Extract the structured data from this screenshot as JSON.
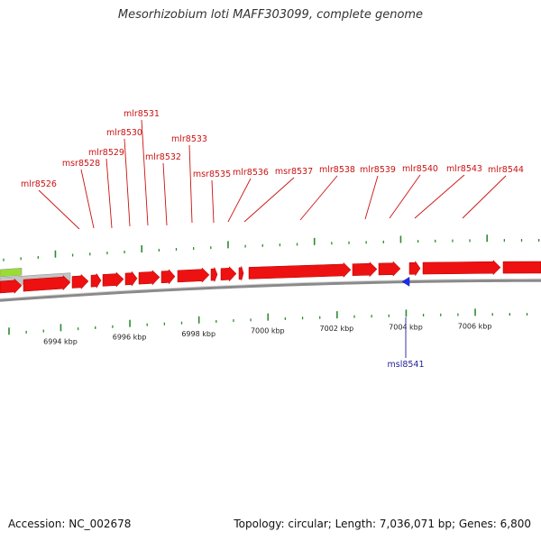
{
  "title": "Mesorhizobium loti MAFF303099, complete genome",
  "accession": "Accession: NC_002678",
  "topology": "Topology: circular; Length: 7,036,071 bp; Genes: 6,800",
  "colors": {
    "forward_gene": "#ee1111",
    "reverse_gene": "#1d2cf0",
    "tick": "#2e8b2e",
    "backbone": "#8a8a8a",
    "label_forward": "#cc1111",
    "label_reverse": "#1f1f9a",
    "green_feature": "#99dd33",
    "grey_feature": "#c4c4c4"
  },
  "axis": {
    "unit": "kbp",
    "labels": [
      {
        "value": 6994,
        "text": "6994 kbp"
      },
      {
        "value": 6996,
        "text": "6996 kbp"
      },
      {
        "value": 6998,
        "text": "6998 kbp"
      },
      {
        "value": 7000,
        "text": "7000 kbp"
      },
      {
        "value": 7002,
        "text": "7002 kbp"
      },
      {
        "value": 7004,
        "text": "7004 kbp"
      },
      {
        "value": 7006,
        "text": "7006 kbp"
      }
    ]
  },
  "genes": [
    {
      "name": "mlr8526",
      "strand": "forward"
    },
    {
      "name": "msr8528",
      "strand": "forward"
    },
    {
      "name": "mlr8529",
      "strand": "forward"
    },
    {
      "name": "mlr8530",
      "strand": "forward"
    },
    {
      "name": "mlr8531",
      "strand": "forward"
    },
    {
      "name": "mlr8532",
      "strand": "forward"
    },
    {
      "name": "mlr8533",
      "strand": "forward"
    },
    {
      "name": "msr8535",
      "strand": "forward"
    },
    {
      "name": "mlr8536",
      "strand": "forward"
    },
    {
      "name": "msr8537",
      "strand": "forward"
    },
    {
      "name": "mlr8538",
      "strand": "forward"
    },
    {
      "name": "mlr8539",
      "strand": "forward"
    },
    {
      "name": "mlr8540",
      "strand": "forward"
    },
    {
      "name": "mlr8543",
      "strand": "forward"
    },
    {
      "name": "mlr8544",
      "strand": "forward"
    },
    {
      "name": "msl8541",
      "strand": "reverse"
    }
  ]
}
